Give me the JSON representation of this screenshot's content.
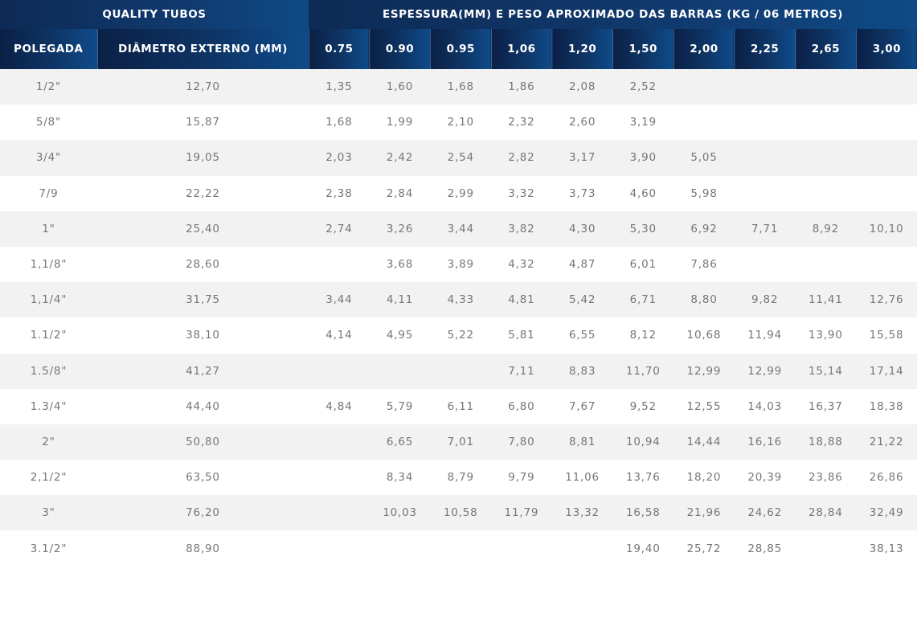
{
  "header": {
    "brand": "QUALITY TUBOS",
    "group": "ESPESSURA(MM) E PESO APROXIMADO DAS BARRAS (KG / 06 METROS)",
    "col_inch": "POLEGADA",
    "col_diameter": "DIÂMETRO EXTERNO (MM)",
    "thickness": [
      "0.75",
      "0.90",
      "0.95",
      "1,06",
      "1,20",
      "1,50",
      "2,00",
      "2,25",
      "2,65",
      "3,00"
    ]
  },
  "rows": [
    {
      "inch": "1/2\"",
      "diameter": "12,70",
      "values": [
        "1,35",
        "1,60",
        "1,68",
        "1,86",
        "2,08",
        "2,52",
        "",
        "",
        "",
        ""
      ]
    },
    {
      "inch": "5/8\"",
      "diameter": "15,87",
      "values": [
        "1,68",
        "1,99",
        "2,10",
        "2,32",
        "2,60",
        "3,19",
        "",
        "",
        "",
        ""
      ]
    },
    {
      "inch": "3/4\"",
      "diameter": "19,05",
      "values": [
        "2,03",
        "2,42",
        "2,54",
        "2,82",
        "3,17",
        "3,90",
        "5,05",
        "",
        "",
        ""
      ]
    },
    {
      "inch": "7/9",
      "diameter": "22,22",
      "values": [
        "2,38",
        "2,84",
        "2,99",
        "3,32",
        "3,73",
        "4,60",
        "5,98",
        "",
        "",
        ""
      ]
    },
    {
      "inch": "1\"",
      "diameter": "25,40",
      "values": [
        "2,74",
        "3,26",
        "3,44",
        "3,82",
        "4,30",
        "5,30",
        "6,92",
        "7,71",
        "8,92",
        "10,10"
      ]
    },
    {
      "inch": "1,1/8\"",
      "diameter": "28,60",
      "values": [
        "",
        "3,68",
        "3,89",
        "4,32",
        "4,87",
        "6,01",
        "7,86",
        "",
        "",
        ""
      ]
    },
    {
      "inch": "1,1/4\"",
      "diameter": "31,75",
      "values": [
        "3,44",
        "4,11",
        "4,33",
        "4,81",
        "5,42",
        "6,71",
        "8,80",
        "9,82",
        "11,41",
        "12,76"
      ]
    },
    {
      "inch": "1.1/2\"",
      "diameter": "38,10",
      "values": [
        "4,14",
        "4,95",
        "5,22",
        "5,81",
        "6,55",
        "8,12",
        "10,68",
        "11,94",
        "13,90",
        "15,58"
      ]
    },
    {
      "inch": "1.5/8\"",
      "diameter": "41,27",
      "values": [
        "",
        "",
        "",
        "7,11",
        "8,83",
        "11,70",
        "12,99",
        "12,99",
        "15,14",
        "17,14"
      ]
    },
    {
      "inch": "1.3/4\"",
      "diameter": "44,40",
      "values": [
        "4,84",
        "5,79",
        "6,11",
        "6,80",
        "7,67",
        "9,52",
        "12,55",
        "14,03",
        "16,37",
        "18,38"
      ]
    },
    {
      "inch": "2\"",
      "diameter": "50,80",
      "values": [
        "",
        "6,65",
        "7,01",
        "7,80",
        "8,81",
        "10,94",
        "14,44",
        "16,16",
        "18,88",
        "21,22"
      ]
    },
    {
      "inch": "2,1/2\"",
      "diameter": "63,50",
      "values": [
        "",
        "8,34",
        "8,79",
        "9,79",
        "11,06",
        "13,76",
        "18,20",
        "20,39",
        "23,86",
        "26,86"
      ]
    },
    {
      "inch": "3\"",
      "diameter": "76,20",
      "values": [
        "",
        "10,03",
        "10,58",
        "11,79",
        "13,32",
        "16,58",
        "21,96",
        "24,62",
        "28,84",
        "32,49"
      ]
    },
    {
      "inch": "3.1/2\"",
      "diameter": "88,90",
      "values": [
        "",
        "",
        "",
        "",
        "",
        "19,40",
        "25,72",
        "28,85",
        "",
        "38,13"
      ]
    }
  ],
  "colors": {
    "header_dark": "#0b2046",
    "header_light": "#0f4b8a",
    "row_alt": "#f2f2f2",
    "text": "#767676"
  }
}
